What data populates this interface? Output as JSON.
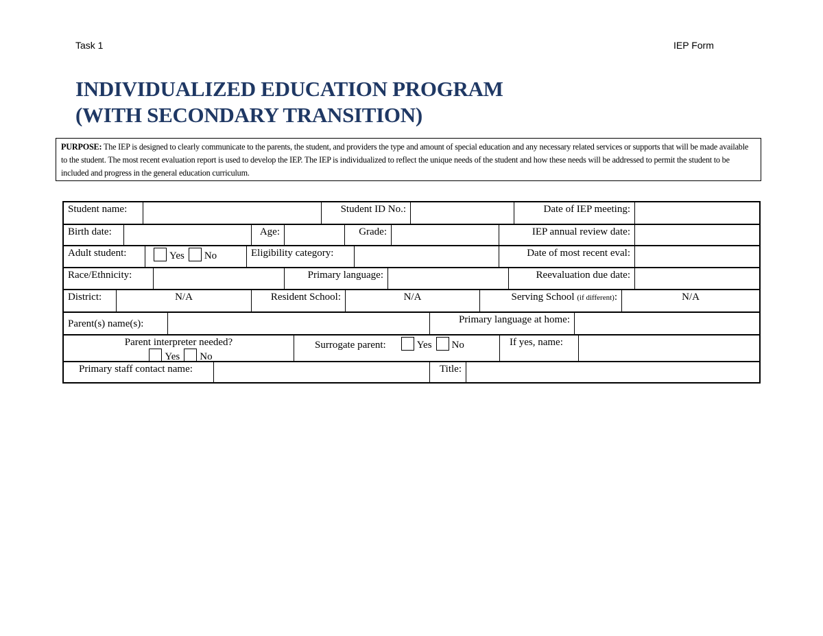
{
  "header": {
    "left": "Task 1",
    "right": "IEP Form"
  },
  "title": {
    "line1": "INDIVIDUALIZED EDUCATION PROGRAM",
    "line2": "(WITH SECONDARY TRANSITION)"
  },
  "purpose": {
    "label": "PURPOSE:",
    "text": " The IEP is designed to clearly communicate to the parents, the student, and providers the type and amount of special education and any necessary related services or supports that will be made available to the student. The most recent evaluation report is used to develop the IEP. The IEP is individualized to reflect the unique needs of the student and how these needs will be addressed to permit the student to be included and progress in the general education curriculum."
  },
  "form": {
    "student_name": "Student name:",
    "student_id": "Student ID No.:",
    "iep_meeting": "Date of IEP meeting:",
    "birth_date": "Birth date:",
    "age": "Age:",
    "grade": "Grade:",
    "annual_review": "IEP annual review date:",
    "adult_student": "Adult student:",
    "yes": "Yes",
    "no": "No",
    "eligibility": "Eligibility category:",
    "recent_eval": "Date of most recent eval:",
    "race": "Race/Ethnicity:",
    "primary_language": "Primary language:",
    "reeval_due": "Reevaluation due date:",
    "district": "District:",
    "district_value": "N/A",
    "resident_school": "Resident School:",
    "resident_school_value": "N/A",
    "serving_school": "Serving School",
    "serving_school_note": "(if different)",
    "serving_school_colon": ":",
    "serving_school_value": "N/A",
    "parent_names": "Parent(s) name(s):",
    "home_language": "Primary language at home:",
    "interpreter": "Parent interpreter needed?",
    "surrogate": "Surrogate parent:",
    "if_yes_name": "If yes, name:",
    "staff_contact": "Primary staff contact name:",
    "staff_title": "Title:"
  }
}
